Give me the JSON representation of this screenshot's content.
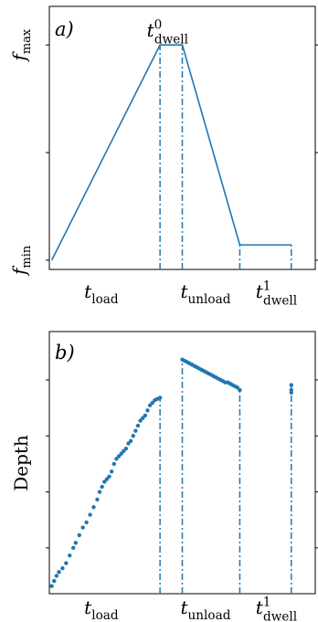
{
  "chart_data": [
    {
      "type": "line",
      "panel_label": "a)",
      "ylabel": "",
      "y_tick_labels": [
        {
          "base": "f",
          "sub": "min",
          "value": 0
        },
        {
          "base": "f",
          "sub": "max",
          "value": 1
        }
      ],
      "x_phase_labels": [
        {
          "base": "t",
          "sub": "load",
          "sup": ""
        },
        {
          "base": "t",
          "sub": "unload",
          "sup": ""
        },
        {
          "base": "t",
          "sub": "dwell",
          "sup": "1"
        }
      ],
      "annotation": {
        "base": "t",
        "sub": "dwell",
        "sup": "0"
      },
      "series": [
        {
          "x": [
            0,
            0.452,
            0.545,
            0.785,
            1.0
          ],
          "y": [
            0,
            1,
            1,
            0.071,
            0.071
          ]
        }
      ],
      "phase_boundaries": [
        0.452,
        0.545,
        0.785,
        1.0
      ],
      "xlim": [
        -0.01,
        1.1
      ],
      "ylim": [
        -0.043,
        1.179
      ],
      "color": "#1f77b4"
    },
    {
      "type": "scatter",
      "panel_label": "b)",
      "ylabel": "Depth",
      "x_phase_labels": [
        {
          "base": "t",
          "sub": "load",
          "sup": ""
        },
        {
          "base": "t",
          "sub": "unload",
          "sup": ""
        },
        {
          "base": "t",
          "sub": "dwell",
          "sup": "1"
        }
      ],
      "segments": [
        {
          "x": [
            0,
            0.01,
            0.02,
            0.03,
            0.045,
            0.06,
            0.075,
            0.09,
            0.1,
            0.115,
            0.13,
            0.145,
            0.16,
            0.175,
            0.19,
            0.2,
            0.21,
            0.22,
            0.23,
            0.24,
            0.25,
            0.26,
            0.27,
            0.28,
            0.29,
            0.3,
            0.31,
            0.32,
            0.33,
            0.34,
            0.35,
            0.36,
            0.37,
            0.38,
            0.39,
            0.4,
            0.41,
            0.42,
            0.43,
            0.44,
            0.452
          ],
          "y": [
            0.03,
            0.05,
            0.07,
            0.085,
            0.1,
            0.12,
            0.15,
            0.18,
            0.2,
            0.23,
            0.26,
            0.28,
            0.31,
            0.34,
            0.37,
            0.4,
            0.42,
            0.44,
            0.45,
            0.46,
            0.48,
            0.51,
            0.53,
            0.54,
            0.55,
            0.56,
            0.57,
            0.59,
            0.6,
            0.62,
            0.64,
            0.66,
            0.68,
            0.69,
            0.7,
            0.72,
            0.74,
            0.75,
            0.76,
            0.765,
            0.77
          ]
        },
        {
          "x": [
            0.545,
            0.555,
            0.565,
            0.575,
            0.585,
            0.595,
            0.605,
            0.615,
            0.625,
            0.635,
            0.645,
            0.655,
            0.665,
            0.675,
            0.685,
            0.695,
            0.705,
            0.715,
            0.725,
            0.735,
            0.745,
            0.755,
            0.765,
            0.775,
            0.785
          ],
          "y": [
            0.92,
            0.915,
            0.91,
            0.905,
            0.9,
            0.895,
            0.89,
            0.885,
            0.88,
            0.875,
            0.87,
            0.865,
            0.86,
            0.855,
            0.85,
            0.845,
            0.84,
            0.835,
            0.83,
            0.83,
            0.825,
            0.82,
            0.815,
            0.81,
            0.8
          ]
        },
        {
          "x": [
            1.0,
            1.0,
            1.0
          ],
          "y": [
            0.82,
            0.8,
            0.79
          ]
        }
      ],
      "phase_boundaries": [
        0.452,
        0.545,
        0.785,
        1.0
      ],
      "xlim": [
        -0.01,
        1.1
      ],
      "ylim": [
        0,
        1.03
      ],
      "color": "#1f77b4"
    }
  ]
}
